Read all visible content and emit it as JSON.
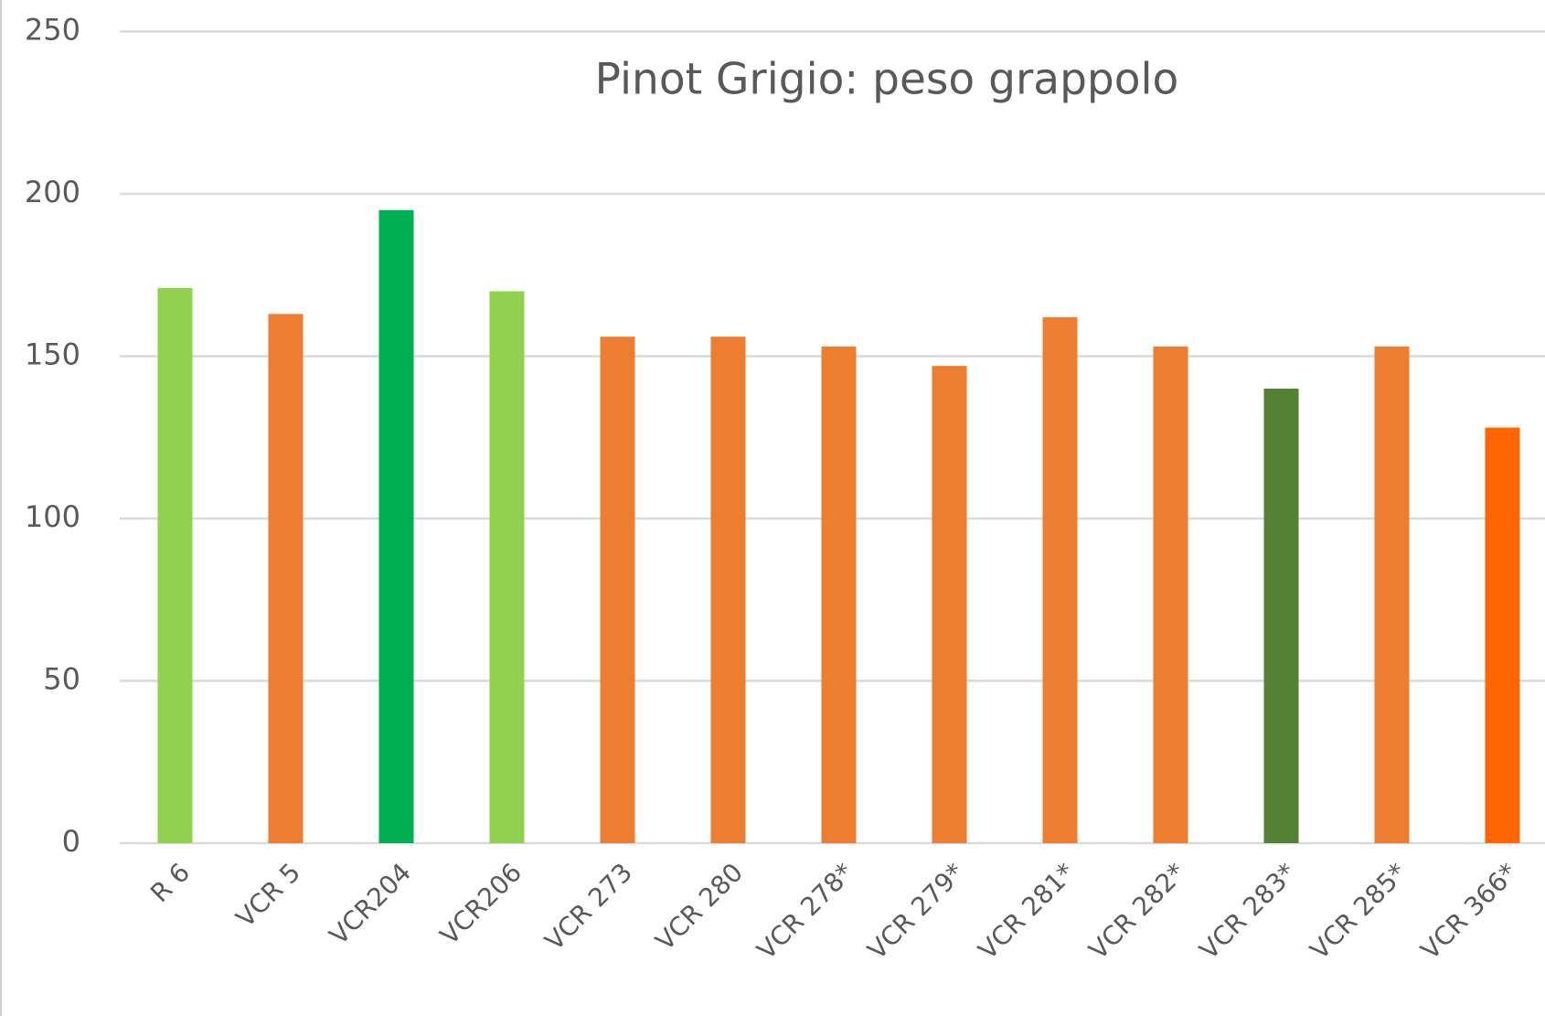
{
  "chart_data": {
    "type": "bar",
    "title": "Pinot Grigio: peso grappolo",
    "categories": [
      "R 6",
      "VCR 5",
      "VCR204",
      "VCR206",
      "VCR 273",
      "VCR 280",
      "VCR 278*",
      "VCR 279*",
      "VCR 281*",
      "VCR 282*",
      "VCR 283*",
      "VCR 285*",
      "VCR 366*"
    ],
    "values": [
      171,
      163,
      195,
      170,
      156,
      156,
      153,
      147,
      162,
      153,
      140,
      153,
      128
    ],
    "colors": [
      "#92d050",
      "#ed7d31",
      "#00b050",
      "#92d050",
      "#ed7d31",
      "#ed7d31",
      "#ed7d31",
      "#ed7d31",
      "#ed7d31",
      "#ed7d31",
      "#548235",
      "#ed7d31",
      "#ff6600"
    ],
    "ylim": [
      0,
      250
    ],
    "yticks": [
      0,
      50,
      100,
      150,
      200,
      250
    ],
    "grid": true
  }
}
